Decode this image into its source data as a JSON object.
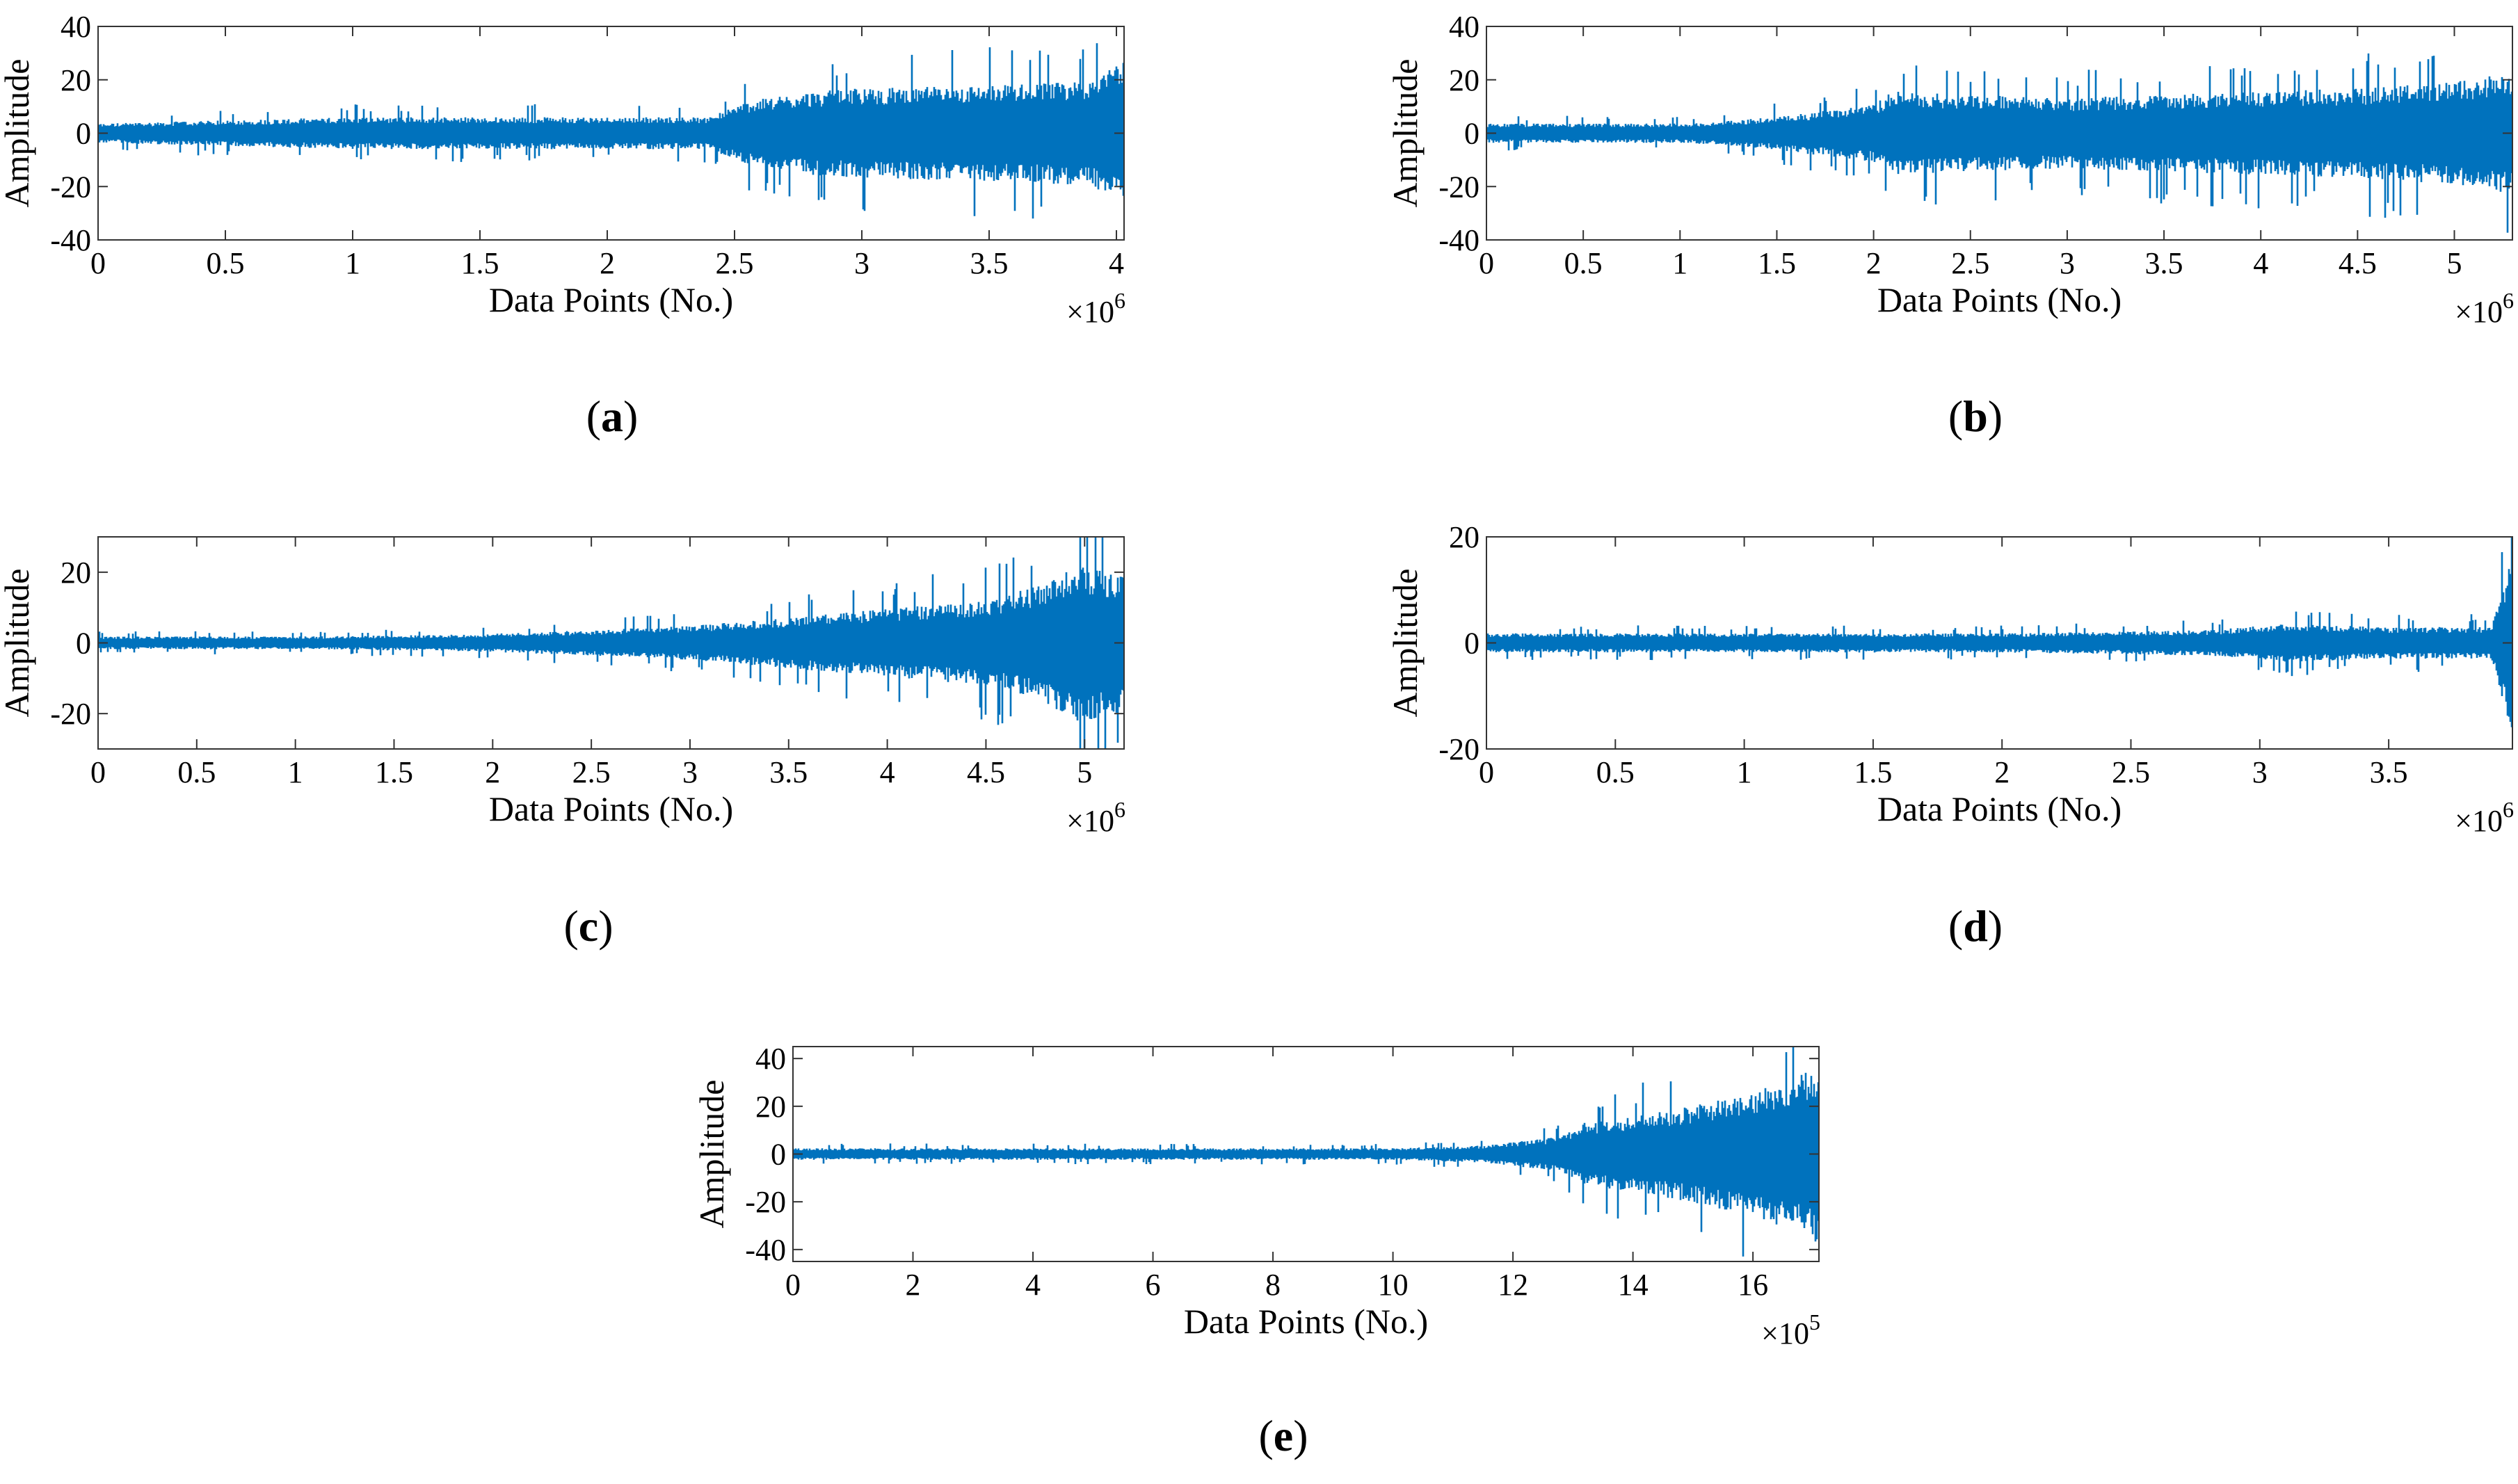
{
  "figure": {
    "signal_color": "#0072BD",
    "panels": [
      "a",
      "b",
      "c",
      "d",
      "e"
    ]
  },
  "chart_data": [
    {
      "id": "a",
      "type": "line",
      "panel_label": "a",
      "xlabel": "Data Points (No.)",
      "ylabel": "Amplitude",
      "x_exponent_label": "×10",
      "x_exponent": "6",
      "xlim": [
        0,
        4.03
      ],
      "ylim": [
        -40,
        40
      ],
      "x_ticks": [
        "0",
        "0.5",
        "1",
        "1.5",
        "2",
        "2.5",
        "3",
        "3.5",
        "4"
      ],
      "x_tick_values": [
        0,
        0.5,
        1,
        1.5,
        2,
        2.5,
        3,
        3.5,
        4
      ],
      "y_ticks": [
        "40",
        "20",
        "0",
        "-20",
        "-40"
      ],
      "y_tick_values": [
        40,
        20,
        0,
        -20,
        -40
      ],
      "envelope": {
        "x": [
          0,
          0.5,
          1,
          1.5,
          2,
          2.4,
          2.55,
          2.8,
          3,
          3.5,
          3.8,
          3.95,
          4.03
        ],
        "amp": [
          3,
          4,
          5,
          5,
          5,
          5,
          10,
          13,
          14,
          15,
          16,
          18,
          24
        ]
      }
    },
    {
      "id": "b",
      "type": "line",
      "panel_label": "b",
      "xlabel": "Data Points (No.)",
      "ylabel": "Amplitude",
      "x_exponent_label": "×10",
      "x_exponent": "6",
      "xlim": [
        0,
        5.3
      ],
      "ylim": [
        -40,
        40
      ],
      "x_ticks": [
        "0",
        "0.5",
        "1",
        "1.5",
        "2",
        "2.5",
        "3",
        "3.5",
        "4",
        "4.5",
        "5"
      ],
      "x_tick_values": [
        0,
        0.5,
        1,
        1.5,
        2,
        2.5,
        3,
        3.5,
        4,
        4.5,
        5
      ],
      "y_ticks": [
        "40",
        "20",
        "0",
        "-20",
        "-40"
      ],
      "y_tick_values": [
        40,
        20,
        0,
        -20,
        -40
      ],
      "envelope": {
        "x": [
          0,
          0.5,
          1,
          1.3,
          1.6,
          2,
          2.1,
          2.5,
          3,
          3.5,
          4,
          4.5,
          5,
          5.3
        ],
        "amp": [
          3,
          3,
          3,
          4,
          6,
          9,
          13,
          12,
          11,
          12,
          13,
          14,
          16,
          19
        ]
      }
    },
    {
      "id": "c",
      "type": "line",
      "panel_label": "c",
      "xlabel": "Data Points (No.)",
      "ylabel": "Amplitude",
      "x_exponent_label": "×10",
      "x_exponent": "6",
      "xlim": [
        0,
        5.2
      ],
      "ylim": [
        -30,
        30
      ],
      "x_ticks": [
        "0",
        "0.5",
        "1",
        "1.5",
        "2",
        "2.5",
        "3",
        "3.5",
        "4",
        "4.5",
        "5"
      ],
      "x_tick_values": [
        0,
        0.5,
        1,
        1.5,
        2,
        2.5,
        3,
        3.5,
        4,
        4.5,
        5
      ],
      "y_ticks": [
        "20",
        "0",
        "-20"
      ],
      "y_tick_values": [
        20,
        0,
        -20
      ],
      "envelope": {
        "x": [
          0,
          1,
          1.9,
          2.5,
          3,
          3.5,
          4,
          4.5,
          4.8,
          4.95,
          5.2
        ],
        "amp": [
          1.5,
          1.5,
          2,
          3,
          4,
          6,
          8,
          10,
          14,
          19,
          16
        ]
      }
    },
    {
      "id": "d",
      "type": "line",
      "panel_label": "d",
      "xlabel": "Data Points (No.)",
      "ylabel": "Amplitude",
      "x_exponent_label": "×10",
      "x_exponent": "6",
      "xlim": [
        0,
        3.98
      ],
      "ylim": [
        -20,
        20
      ],
      "x_ticks": [
        "0",
        "0.5",
        "1",
        "1.5",
        "2",
        "2.5",
        "3",
        "3.5"
      ],
      "x_tick_values": [
        0,
        0.5,
        1,
        1.5,
        2,
        2.5,
        3,
        3.5
      ],
      "y_ticks": [
        "20",
        "0",
        "-20"
      ],
      "y_tick_values": [
        20,
        0,
        -20
      ],
      "envelope": {
        "x": [
          0,
          1,
          2,
          2.8,
          3.1,
          3.5,
          3.9,
          3.95,
          3.98
        ],
        "amp": [
          1.5,
          1.5,
          1.5,
          2,
          3,
          2.5,
          2.5,
          10,
          18
        ]
      }
    },
    {
      "id": "e",
      "type": "line",
      "panel_label": "e",
      "xlabel": "Data Points (No.)",
      "ylabel": "Amplitude",
      "x_exponent_label": "×10",
      "x_exponent": "5",
      "xlim": [
        0,
        17.1
      ],
      "ylim": [
        -45,
        45
      ],
      "x_ticks": [
        "0",
        "2",
        "4",
        "6",
        "8",
        "10",
        "12",
        "14",
        "16"
      ],
      "x_tick_values": [
        0,
        2,
        4,
        6,
        8,
        10,
        12,
        14,
        16
      ],
      "y_ticks": [
        "40",
        "20",
        "0",
        "-20",
        "-40"
      ],
      "y_tick_values": [
        40,
        20,
        0,
        -20,
        -40
      ],
      "envelope": {
        "x": [
          0,
          5,
          10,
          11.5,
          12.8,
          13.2,
          14,
          15,
          16,
          16.8,
          17.1
        ],
        "amp": [
          2,
          2,
          2,
          3,
          6,
          11,
          13,
          17,
          22,
          28,
          32
        ]
      }
    }
  ]
}
